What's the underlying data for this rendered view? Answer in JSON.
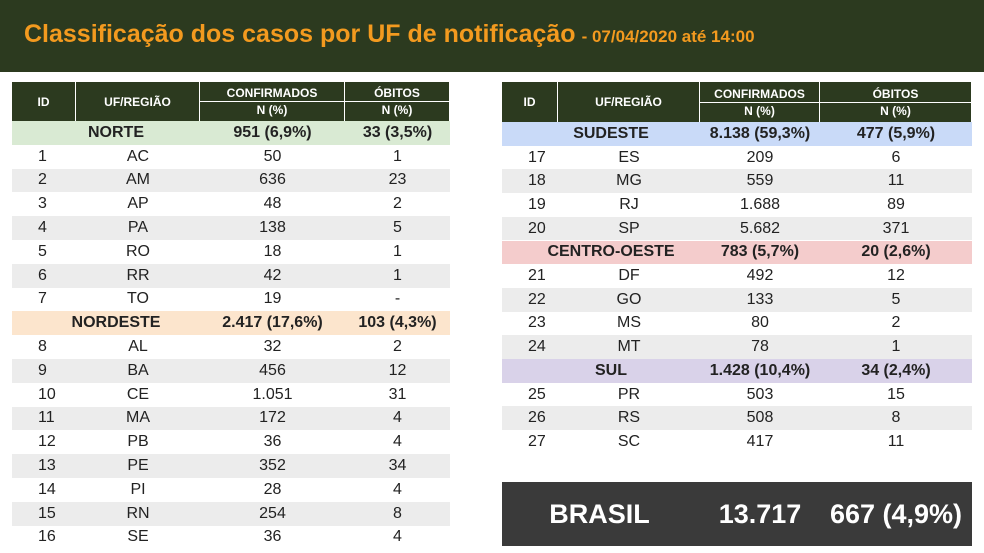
{
  "header": {
    "title": "Classificação dos casos por UF de notificação",
    "subtitle": "- 07/04/2020 até 14:00"
  },
  "tables": [
    {
      "columns": {
        "id": "ID",
        "uf": "UF/REGIÃO",
        "confirmados": "CONFIRMADOS",
        "obitos": "ÓBITOS",
        "n_confirmados": "N (%)",
        "n_obitos": "N (%)"
      },
      "groups": [
        {
          "region": "NORTE",
          "confirmados": "951 (6,9%)",
          "obitos": "33 (3,5%)",
          "rows": [
            [
              "1",
              "AC",
              "50",
              "1"
            ],
            [
              "2",
              "AM",
              "636",
              "23"
            ],
            [
              "3",
              "AP",
              "48",
              "2"
            ],
            [
              "4",
              "PA",
              "138",
              "5"
            ],
            [
              "5",
              "RO",
              "18",
              "1"
            ],
            [
              "6",
              "RR",
              "42",
              "1"
            ],
            [
              "7",
              "TO",
              "19",
              "-"
            ]
          ]
        },
        {
          "region": "NORDESTE",
          "confirmados": "2.417 (17,6%)",
          "obitos": "103 (4,3%)",
          "rows": [
            [
              "8",
              "AL",
              "32",
              "2"
            ],
            [
              "9",
              "BA",
              "456",
              "12"
            ],
            [
              "10",
              "CE",
              "1.051",
              "31"
            ],
            [
              "11",
              "MA",
              "172",
              "4"
            ],
            [
              "12",
              "PB",
              "36",
              "4"
            ],
            [
              "13",
              "PE",
              "352",
              "34"
            ],
            [
              "14",
              "PI",
              "28",
              "4"
            ],
            [
              "15",
              "RN",
              "254",
              "8"
            ],
            [
              "16",
              "SE",
              "36",
              "4"
            ]
          ]
        }
      ]
    },
    {
      "columns": {
        "id": "ID",
        "uf": "UF/REGIÃO",
        "confirmados": "CONFIRMADOS",
        "obitos": "ÓBITOS",
        "n_confirmados": "N (%)",
        "n_obitos": "N (%)"
      },
      "groups": [
        {
          "region": "SUDESTE",
          "confirmados": "8.138 (59,3%)",
          "obitos": "477 (5,9%)",
          "rows": [
            [
              "17",
              "ES",
              "209",
              "6"
            ],
            [
              "18",
              "MG",
              "559",
              "11"
            ],
            [
              "19",
              "RJ",
              "1.688",
              "89"
            ],
            [
              "20",
              "SP",
              "5.682",
              "371"
            ]
          ]
        },
        {
          "region": "CENTRO-OESTE",
          "confirmados": "783 (5,7%)",
          "obitos": "20 (2,6%)",
          "rows": [
            [
              "21",
              "DF",
              "492",
              "12"
            ],
            [
              "22",
              "GO",
              "133",
              "5"
            ],
            [
              "23",
              "MS",
              "80",
              "2"
            ],
            [
              "24",
              "MT",
              "78",
              "1"
            ]
          ]
        },
        {
          "region": "SUL",
          "confirmados": "1.428 (10,4%)",
          "obitos": "34 (2,4%)",
          "rows": [
            [
              "25",
              "PR",
              "503",
              "15"
            ],
            [
              "26",
              "RS",
              "508",
              "8"
            ],
            [
              "27",
              "SC",
              "417",
              "11"
            ]
          ]
        }
      ]
    }
  ],
  "total": {
    "label": "BRASIL",
    "confirmados": "13.717",
    "obitos": "667 (4,9%)"
  }
}
